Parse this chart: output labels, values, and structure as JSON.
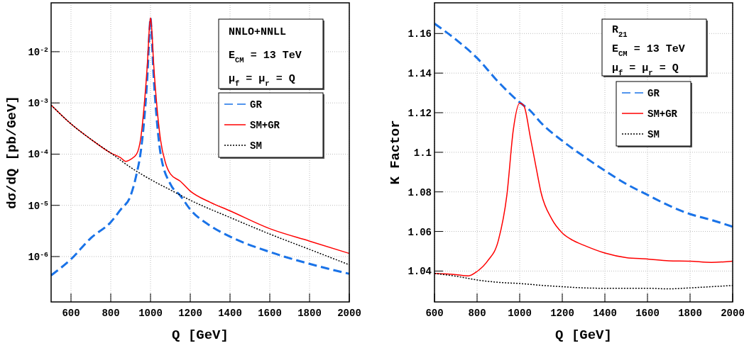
{
  "chart_data": [
    {
      "type": "line",
      "xlabel": "Q [GeV]",
      "ylabel": "dσ/dQ [pb/GeV]",
      "log": "y",
      "grid": true,
      "legend": "top right",
      "xlim": [
        500,
        2000
      ],
      "ylim": [
        1.3e-07,
        0.09
      ],
      "xticks": [
        600,
        800,
        1000,
        1200,
        1400,
        1600,
        1800,
        2000
      ],
      "yticks": [
        {
          "value": 1e-06,
          "label": "10$^{-6}$"
        },
        {
          "value": 1e-05,
          "label": "10$^{-5}$"
        },
        {
          "value": 0.0001,
          "label": "10$^{-4}$"
        },
        {
          "value": 0.001,
          "label": "10$^{-3}$"
        },
        {
          "value": 0.01,
          "label": "10$^{-2}$"
        }
      ],
      "annotations": [
        "NNLO+NNLL",
        "E$_{CM}$ = 13 TeV",
        "μ$_{f}$ = μ$_{r}$ = Q"
      ],
      "series": [
        {
          "name": "GR",
          "color": "#1a73e8",
          "line_style": "dashed",
          "x": [
            500,
            600,
            700,
            800,
            850,
            900,
            930,
            950,
            970,
            985,
            995,
            1000,
            1005,
            1015,
            1030,
            1050,
            1100,
            1150,
            1200,
            1300,
            1400,
            1600,
            1800,
            2000
          ],
          "values": [
            4.3e-07,
            8.9e-07,
            2.3e-06,
            4.7e-06,
            8.3e-06,
            1.55e-05,
            4.1e-05,
            0.000105,
            0.00056,
            0.0038,
            0.025,
            0.046,
            0.025,
            0.0038,
            0.00056,
            0.000105,
            2.6e-05,
            1.55e-05,
            8.3e-06,
            4e-06,
            2.45e-06,
            1.23e-06,
            7.2e-07,
            4.6e-07
          ]
        },
        {
          "name": "SM+GR",
          "color": "#ff0000",
          "line_style": "solid",
          "x": [
            500,
            600,
            700,
            800,
            850,
            875,
            900,
            930,
            950,
            970,
            985,
            995,
            1000,
            1005,
            1015,
            1030,
            1050,
            1075,
            1100,
            1150,
            1200,
            1300,
            1400,
            1600,
            1800,
            2000
          ],
          "values": [
            0.00091,
            0.00039,
            0.000195,
            0.000105,
            8.5e-05,
            7.2e-05,
            7.9e-05,
            0.0001,
            0.000195,
            0.00107,
            0.0065,
            0.032,
            0.046,
            0.032,
            0.0065,
            0.00107,
            0.000195,
            6.8e-05,
            4.1e-05,
            2.95e-05,
            1.9e-05,
            1.15e-05,
            7.8e-06,
            3.5e-06,
            2e-06,
            1.15e-06
          ]
        },
        {
          "name": "SM",
          "color": "#000000",
          "line_style": "dotted",
          "x": [
            500,
            600,
            700,
            800,
            900,
            1000,
            1100,
            1200,
            1400,
            1600,
            1800,
            2000
          ],
          "values": [
            0.00091,
            0.00039,
            0.000195,
            0.000105,
            5.5e-05,
            3.2e-05,
            2e-05,
            1.26e-05,
            5.8e-06,
            2.75e-06,
            1.38e-06,
            6.9e-07
          ]
        }
      ]
    },
    {
      "type": "line",
      "xlabel": "Q [GeV]",
      "ylabel": "K Factor",
      "grid": true,
      "legend": "top right",
      "xlim": [
        600,
        2000
      ],
      "ylim": [
        1.0244,
        1.1755
      ],
      "xticks": [
        600,
        800,
        1000,
        1200,
        1400,
        1600,
        1800,
        2000
      ],
      "yticks": [
        1.04,
        1.06,
        1.08,
        1.1,
        1.12,
        1.14,
        1.16
      ],
      "annotations": [
        "R$_{21}$",
        "E$_{CM}$ = 13 TeV",
        "μ$_{f}$ = μ$_{r}$ = Q"
      ],
      "series": [
        {
          "name": "GR",
          "color": "#1a73e8",
          "line_style": "dashed",
          "x": [
            600,
            700,
            800,
            900,
            1000,
            1050,
            1100,
            1200,
            1300,
            1400,
            1500,
            1600,
            1700,
            1800,
            1900,
            2000
          ],
          "values": [
            1.165,
            1.157,
            1.1476,
            1.1355,
            1.1252,
            1.121,
            1.1149,
            1.1058,
            1.098,
            1.0907,
            1.084,
            1.0785,
            1.0731,
            1.0688,
            1.0658,
            1.0624
          ]
        },
        {
          "name": "SM+GR",
          "color": "#ff0000",
          "line_style": "solid",
          "x": [
            600,
            700,
            760,
            800,
            850,
            900,
            940,
            970,
            1000,
            1020,
            1050,
            1080,
            1100,
            1150,
            1200,
            1250,
            1300,
            1400,
            1500,
            1600,
            1700,
            1800,
            1900,
            2000
          ],
          "values": [
            1.0388,
            1.0382,
            1.0376,
            1.0398,
            1.0452,
            1.0555,
            1.0785,
            1.1113,
            1.1248,
            1.1234,
            1.1076,
            1.0907,
            1.0798,
            1.0664,
            1.0592,
            1.0555,
            1.0531,
            1.0491,
            1.0468,
            1.0461,
            1.0452,
            1.045,
            1.0444,
            1.045
          ]
        },
        {
          "name": "SM",
          "color": "#000000",
          "line_style": "dotted",
          "x": [
            600,
            700,
            800,
            900,
            1000,
            1100,
            1200,
            1300,
            1400,
            1600,
            1700,
            1800,
            1900,
            2000
          ],
          "values": [
            1.0388,
            1.0374,
            1.0355,
            1.0343,
            1.0337,
            1.0328,
            1.0321,
            1.0315,
            1.0313,
            1.0313,
            1.031,
            1.0315,
            1.0321,
            1.0327
          ]
        }
      ]
    }
  ]
}
